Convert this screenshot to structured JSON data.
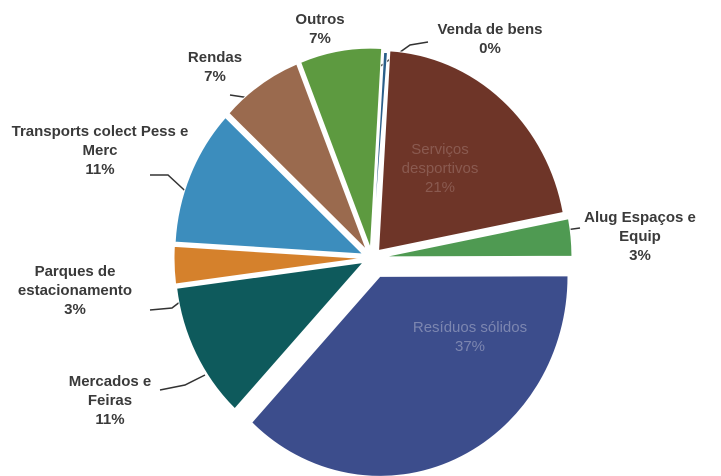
{
  "chart_data": {
    "type": "pie",
    "categories": [
      "Venda de bens",
      "Serviços desportivos",
      "Alug Espaços e Equip",
      "Resíduos sólidos",
      "Mercados e Feiras",
      "Parques de estacionamento",
      "Transports colect Pess e Merc",
      "Rendas",
      "Outros"
    ],
    "values": [
      0,
      21,
      3,
      37,
      11,
      3,
      11,
      7,
      7
    ],
    "value_labels": [
      "0%",
      "21%",
      "3%",
      "37%",
      "11%",
      "3%",
      "11%",
      "7%",
      "7%"
    ],
    "colors": [
      "#2b5f8a",
      "#6e3528",
      "#4f9a52",
      "#3c4d8c",
      "#0e5a5c",
      "#d5812c",
      "#3c8dbd",
      "#9a6a4e",
      "#5d9a40"
    ]
  }
}
